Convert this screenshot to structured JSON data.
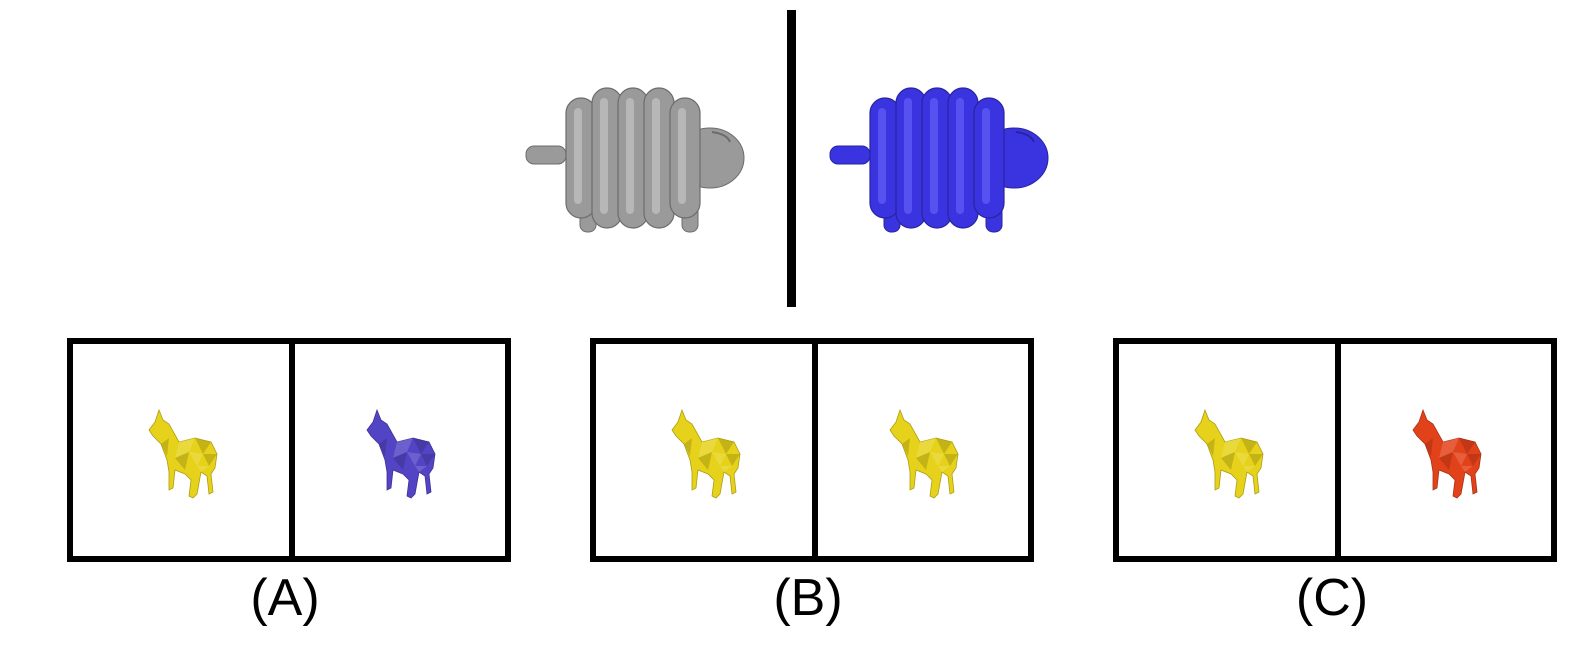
{
  "top_pair": {
    "left_object": {
      "name": "coiled-sheep",
      "color": "#9a9a9a",
      "highlight": "#cfcfcf"
    },
    "right_object": {
      "name": "coiled-sheep",
      "color": "#3a34e0",
      "highlight": "#6e6cff"
    }
  },
  "options": [
    {
      "label": "(A)",
      "left_color": "#e6d21a",
      "right_color": "#5244c4"
    },
    {
      "label": "(B)",
      "left_color": "#e6d21a",
      "right_color": "#e6d21a"
    },
    {
      "label": "(C)",
      "left_color": "#e6d21a",
      "right_color": "#e2421a"
    }
  ]
}
